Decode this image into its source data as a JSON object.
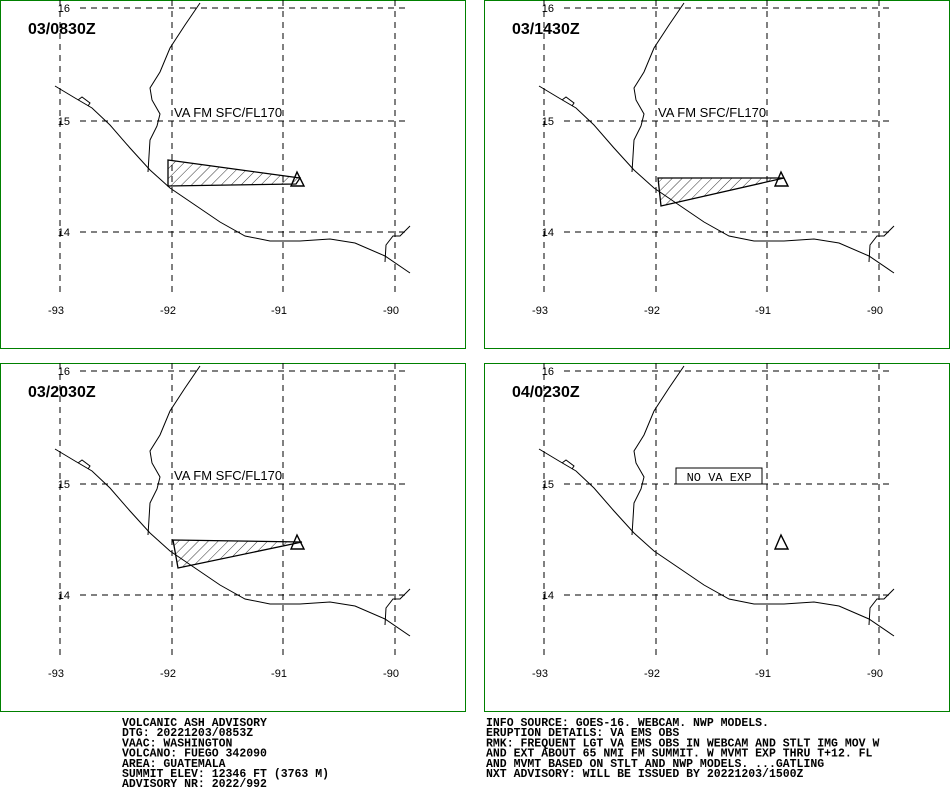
{
  "panels": [
    {
      "time": "03/0830Z",
      "annotation": "VA FM SFC/FL170"
    },
    {
      "time": "03/1430Z",
      "annotation": "VA FM SFC/FL170"
    },
    {
      "time": "03/2030Z",
      "annotation": "VA FM SFC/FL170"
    },
    {
      "time": "04/0230Z",
      "annotation": "NO VA EXP"
    }
  ],
  "lat_labels": [
    "16",
    "15",
    "14"
  ],
  "lon_labels": [
    "-93",
    "-92",
    "-91",
    "-90"
  ],
  "advisory_left": [
    "VOLCANIC ASH ADVISORY",
    "DTG: 20221203/0853Z",
    "VAAC: WASHINGTON",
    "VOLCANO: FUEGO 342090",
    "AREA: GUATEMALA",
    "SUMMIT ELEV: 12346 FT (3763 M)",
    "ADVISORY NR: 2022/992"
  ],
  "advisory_right": [
    "INFO SOURCE: GOES-16. WEBCAM. NWP MODELS.",
    "ERUPTION DETAILS: VA EMS OBS",
    "RMK: FREQUENT LGT VA EMS OBS IN WEBCAM AND STLT IMG MOV W",
    "AND EXT ABOUT 65 NMI FM SUMMIT. W MVMT EXP THRU T+12. FL",
    "AND MVMT BASED ON STLT AND NWP MODELS. ...GATLING",
    "NXT ADVISORY: WILL BE ISSUED BY 20221203/1500Z"
  ]
}
